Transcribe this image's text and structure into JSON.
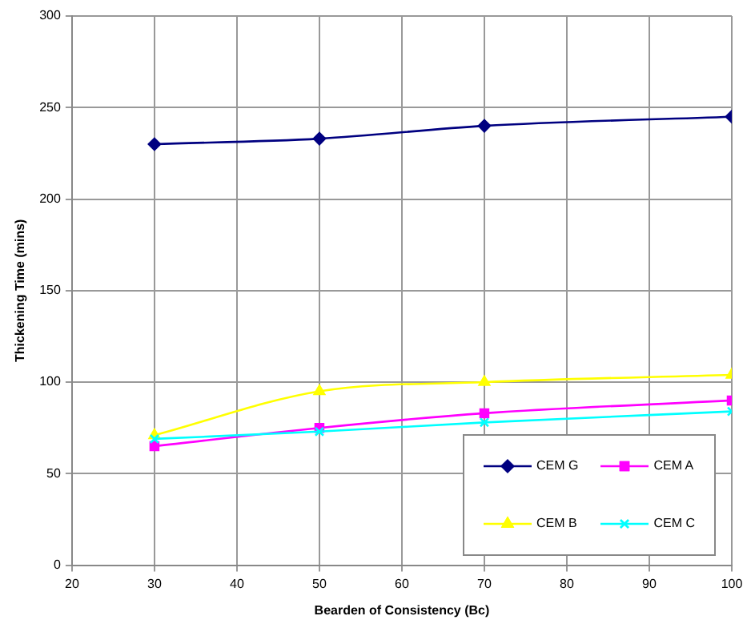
{
  "chart_data": {
    "type": "line",
    "xlabel": "Bearden of Consistency (Bc)",
    "ylabel": "Thickening Time (mins)",
    "x": [
      30,
      50,
      70,
      100
    ],
    "series": [
      {
        "name": "CEM G",
        "color": "#000080",
        "marker": "diamond",
        "values": [
          230,
          233,
          240,
          245
        ]
      },
      {
        "name": "CEM A",
        "color": "#ff00ff",
        "marker": "square",
        "values": [
          65,
          75,
          83,
          90
        ]
      },
      {
        "name": "CEM B",
        "color": "#ffff00",
        "marker": "triangle",
        "values": [
          71,
          95,
          100,
          104
        ]
      },
      {
        "name": "CEM C",
        "color": "#00ffff",
        "marker": "cross",
        "values": [
          69,
          73,
          78,
          84
        ]
      }
    ],
    "xlim": [
      20,
      100
    ],
    "xticks": [
      20,
      30,
      40,
      50,
      60,
      70,
      80,
      90,
      100
    ],
    "ylim": [
      0,
      300
    ],
    "yticks": [
      0,
      50,
      100,
      150,
      200,
      250,
      300
    ],
    "grid": true,
    "legend": "bottom right",
    "line_style": "solid"
  }
}
